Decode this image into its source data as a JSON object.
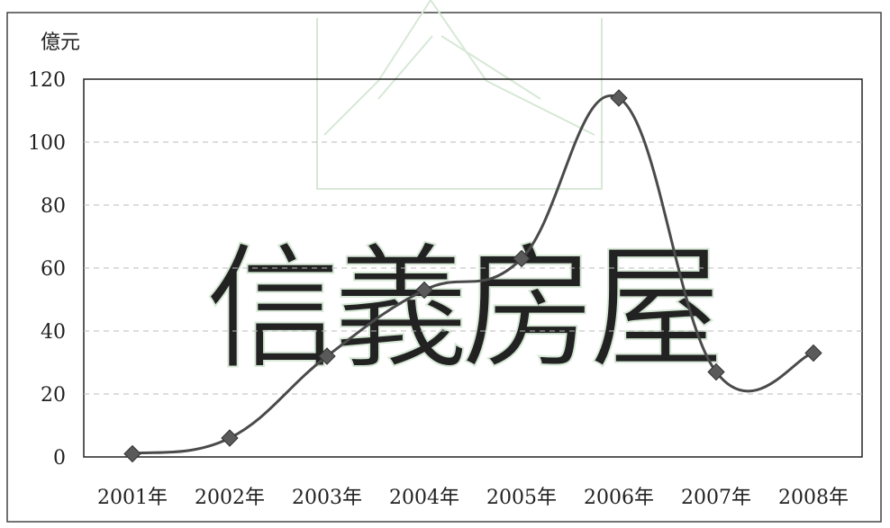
{
  "watermark": {
    "text": "信義房屋",
    "color": "#d7e8d7"
  },
  "chart_data": {
    "type": "line",
    "title": "",
    "ylabel": "億元",
    "xlabel": "",
    "categories": [
      "2001年",
      "2002年",
      "2003年",
      "2004年",
      "2005年",
      "2006年",
      "2007年",
      "2008年"
    ],
    "series": [
      {
        "values": [
          1,
          6,
          32,
          53,
          63,
          114,
          27,
          33
        ]
      }
    ],
    "ylim": [
      0,
      120
    ],
    "yticks": [
      0,
      20,
      40,
      60,
      80,
      100,
      120
    ],
    "grid": true,
    "legend": "none",
    "marker": "diamond",
    "line_color": "#4a4a4a",
    "marker_color": "#5a5a5a"
  }
}
